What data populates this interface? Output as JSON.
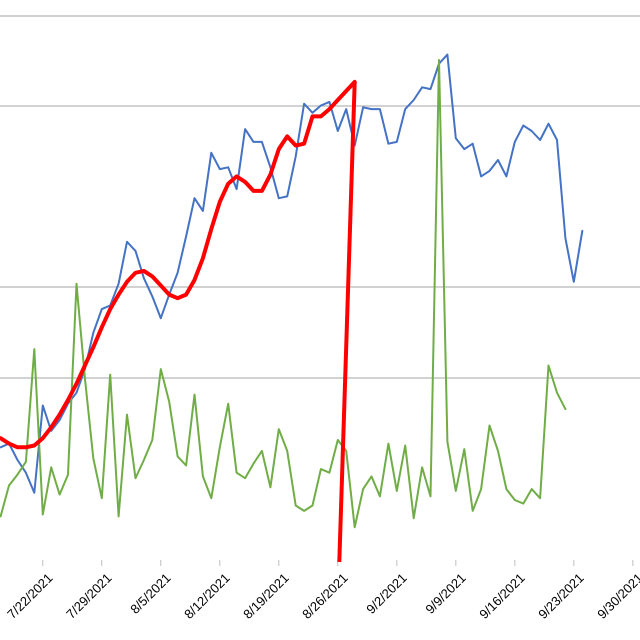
{
  "chart_data": {
    "type": "line",
    "title": "",
    "xlabel": "",
    "ylabel": "",
    "x_ticks": [
      "7/22/2021",
      "7/29/2021",
      "8/5/2021",
      "8/12/2021",
      "8/19/2021",
      "8/26/2021",
      "9/2/2021",
      "9/9/2021",
      "9/16/2021",
      "9/23/2021",
      "9/30/2021"
    ],
    "x_start": "2021-07-17",
    "grid": "horizontal",
    "colors": {
      "blue": "#4472c4",
      "green": "#70ad47",
      "red": "#ff0000",
      "grid": "#a6a6a6"
    },
    "series": [
      {
        "color": "#4472c4",
        "values": [
          0.62,
          0.64,
          0.55,
          0.48,
          0.37,
          0.85,
          0.71,
          0.77,
          0.86,
          0.92,
          1.05,
          1.25,
          1.38,
          1.4,
          1.52,
          1.75,
          1.7,
          1.55,
          1.45,
          1.33,
          1.46,
          1.58,
          1.78,
          1.99,
          1.92,
          2.24,
          2.15,
          2.16,
          2.04,
          2.37,
          2.3,
          2.3,
          2.16,
          1.99,
          2.0,
          2.22,
          2.51,
          2.46,
          2.5,
          2.52,
          2.36,
          2.48,
          2.28,
          2.49,
          2.48,
          2.48,
          2.29,
          2.3,
          2.48,
          2.53,
          2.6,
          2.59,
          2.73,
          2.78,
          2.32,
          2.26,
          2.29,
          2.11,
          2.14,
          2.2,
          2.11,
          2.3,
          2.39,
          2.36,
          2.31,
          2.4,
          2.31,
          1.77,
          1.53,
          1.81
        ]
      },
      {
        "color": "#ff0000",
        "values": [
          0.67,
          0.64,
          0.62,
          0.62,
          0.63,
          0.67,
          0.73,
          0.8,
          0.88,
          0.97,
          1.07,
          1.17,
          1.28,
          1.38,
          1.46,
          1.53,
          1.58,
          1.59,
          1.56,
          1.51,
          1.46,
          1.44,
          1.46,
          1.54,
          1.66,
          1.82,
          1.97,
          2.07,
          2.11,
          2.08,
          2.03,
          2.03,
          2.12,
          2.26,
          2.33,
          2.28,
          2.29,
          2.44,
          2.44,
          2.48,
          2.53,
          2.58,
          2.63
        ]
      },
      {
        "color": "#70ad47",
        "values": [
          0.24,
          0.41,
          0.47,
          0.54,
          1.16,
          0.25,
          0.51,
          0.36,
          0.47,
          1.52,
          1.0,
          0.56,
          0.34,
          1.02,
          0.24,
          0.8,
          0.45,
          0.55,
          0.66,
          1.05,
          0.87,
          0.57,
          0.52,
          0.91,
          0.46,
          0.34,
          0.62,
          0.86,
          0.48,
          0.45,
          0.53,
          0.6,
          0.4,
          0.72,
          0.6,
          0.3,
          0.27,
          0.3,
          0.5,
          0.48,
          0.66,
          0.6,
          0.18,
          0.39,
          0.46,
          0.35,
          0.64,
          0.38,
          0.63,
          0.23,
          0.51,
          0.35,
          2.75,
          0.65,
          0.38,
          0.61,
          0.27,
          0.39,
          0.74,
          0.6,
          0.39,
          0.33,
          0.31,
          0.39,
          0.34,
          1.07,
          0.92,
          0.83
        ]
      }
    ],
    "vertical_line": {
      "date": "2021-08-26",
      "color": "#ff0000"
    }
  }
}
